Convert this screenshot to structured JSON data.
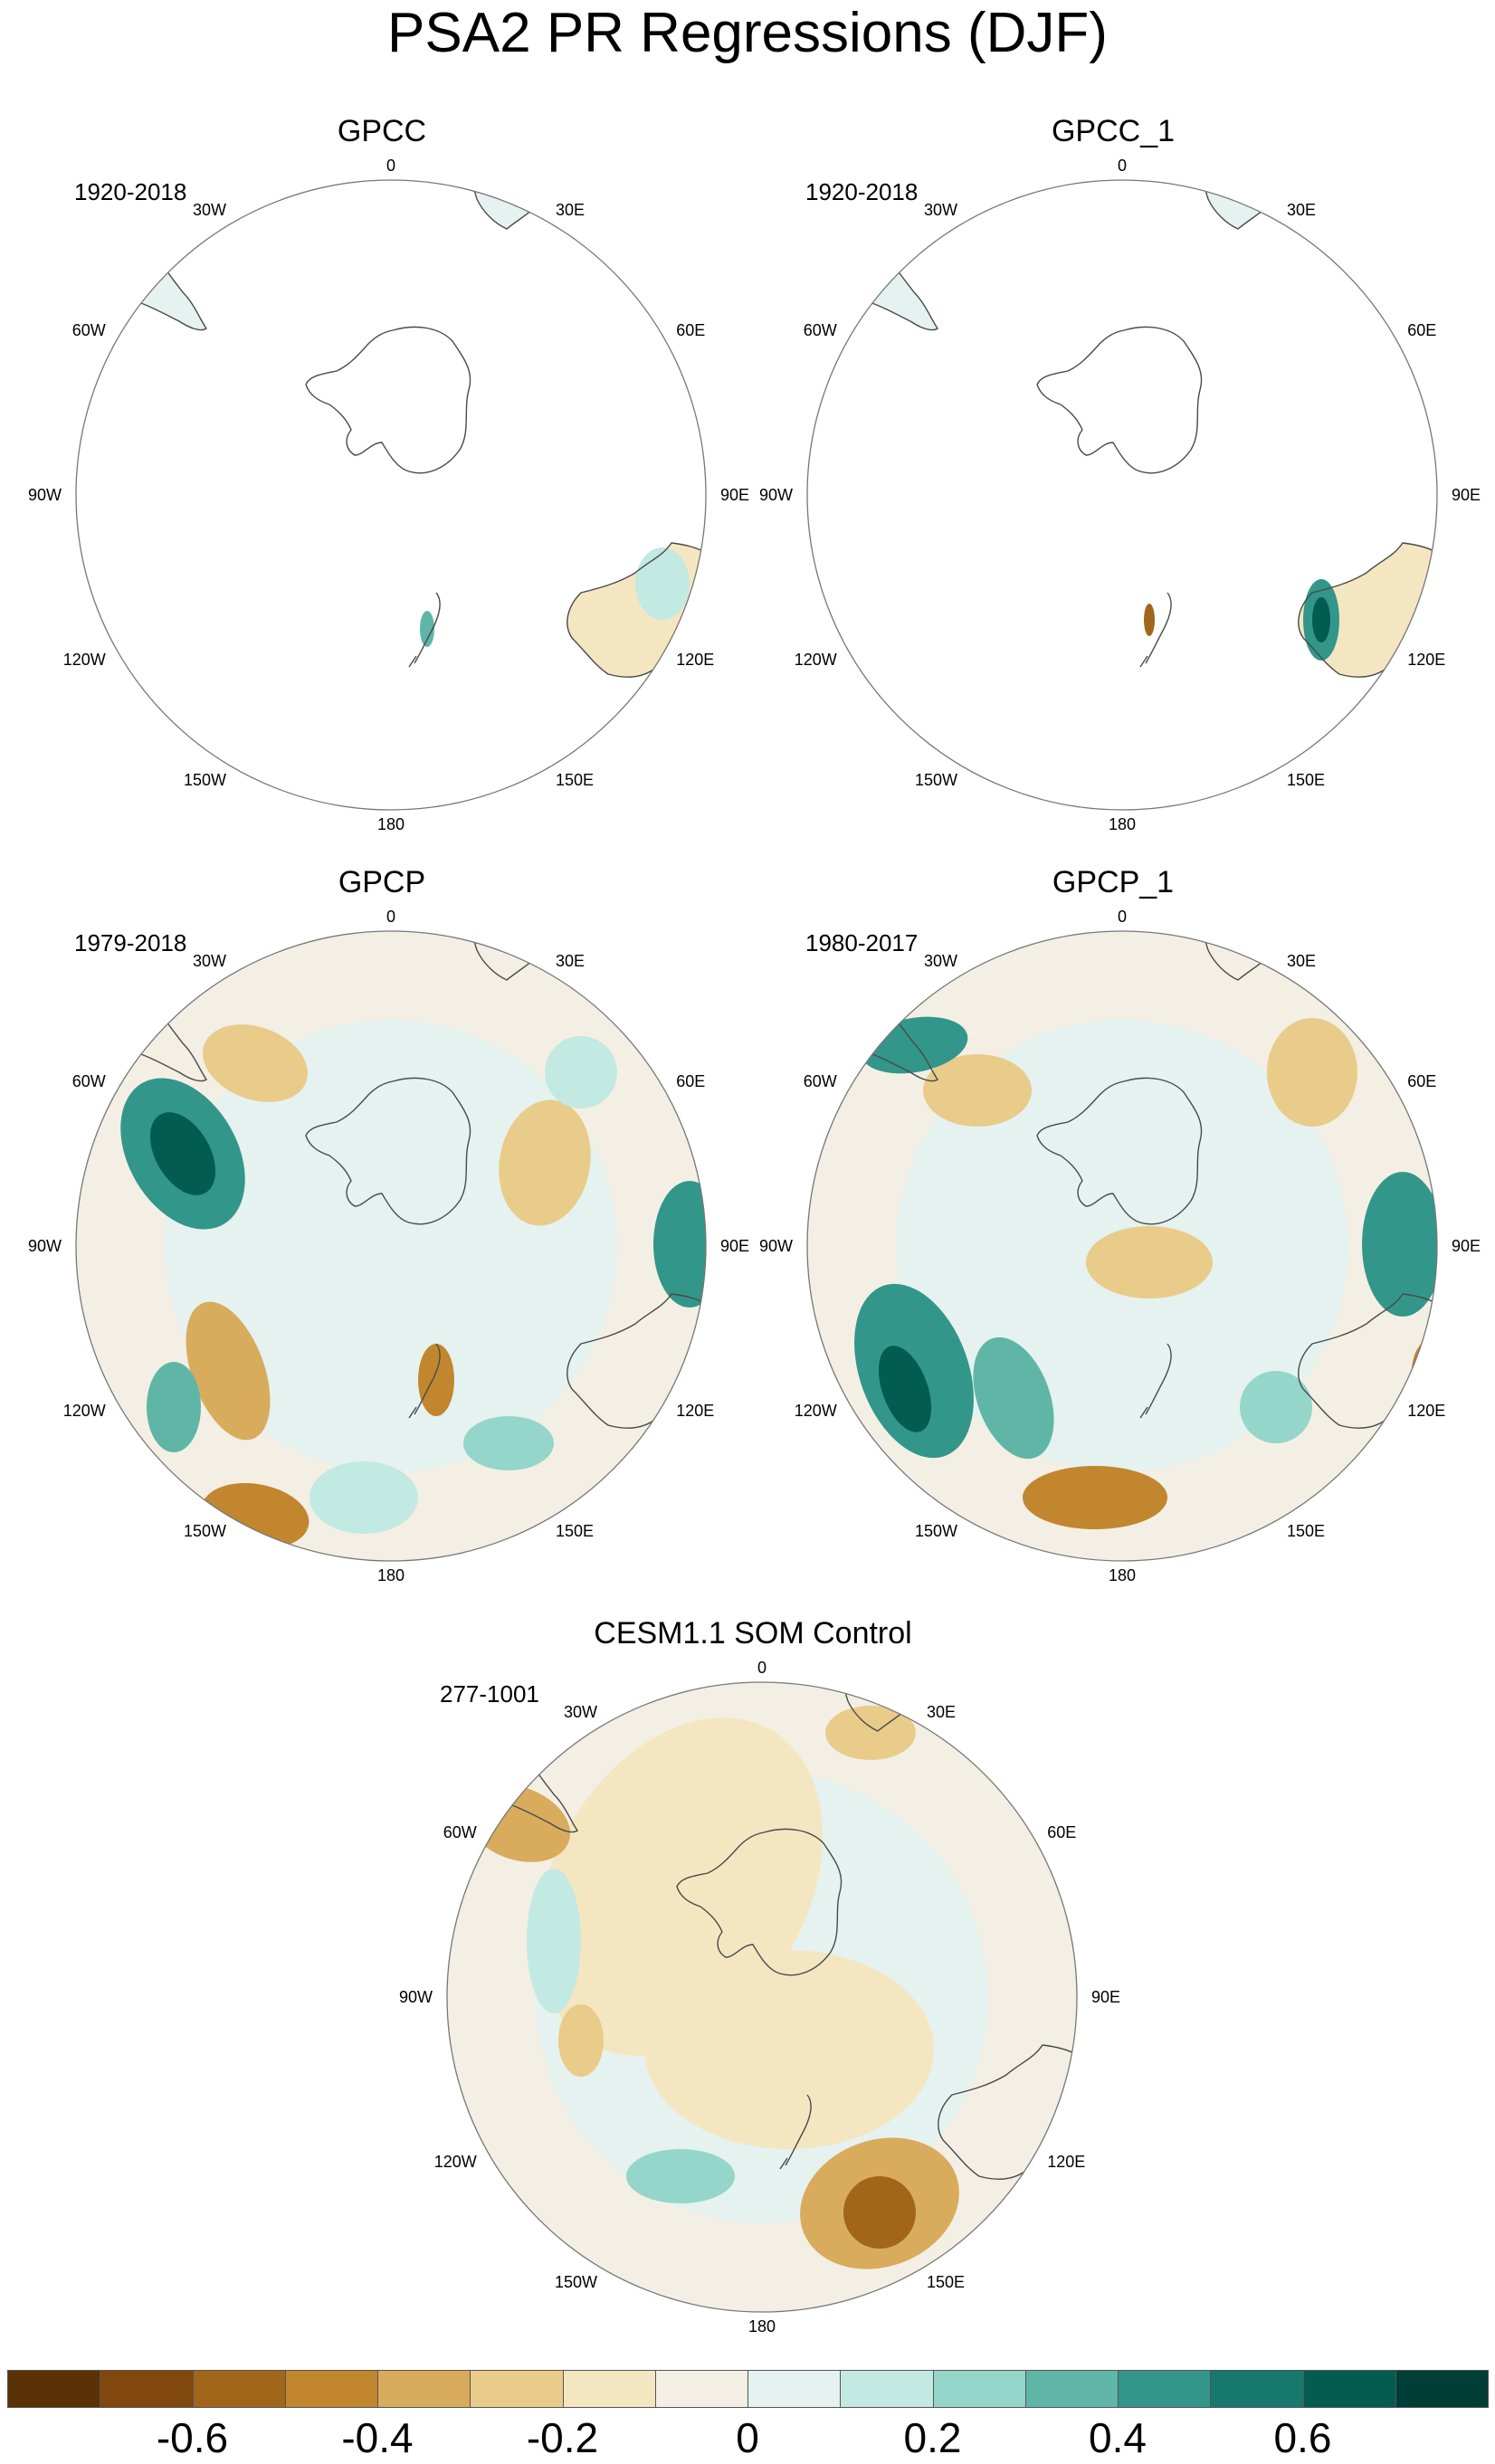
{
  "title": "PSA2 PR Regressions (DJF)",
  "colors": {
    "land_outline": "#4a4a4a",
    "circle_outline": "#777777",
    "scale": [
      "#5a3205",
      "#81480e",
      "#a2661b",
      "#c2862f",
      "#d8ac5c",
      "#e9cc8a",
      "#f5e6c2",
      "#f4efe5",
      "#e5f2f0",
      "#c2e9e2",
      "#94d6c9",
      "#5fb6a7",
      "#33968a",
      "#17786e",
      "#035c52",
      "#003e36"
    ]
  },
  "longitude_labels": [
    "0",
    "30E",
    "60E",
    "90E",
    "120E",
    "150E",
    "180",
    "150W",
    "120W",
    "90W",
    "60W",
    "30W"
  ],
  "panels": [
    {
      "title": "GPCC",
      "period": "1920-2018",
      "coverage": "land"
    },
    {
      "title": "GPCC_1",
      "period": "1920-2018",
      "coverage": "land"
    },
    {
      "title": "GPCP",
      "period": "1979-2018",
      "coverage": "full"
    },
    {
      "title": "GPCP_1",
      "period": "1980-2017",
      "coverage": "full"
    },
    {
      "title": "CESM1.1 SOM Control",
      "period": "277-1001",
      "coverage": "full"
    }
  ],
  "colorbar": {
    "tick_labels": [
      "-0.6",
      "-0.4",
      "-0.2",
      "0",
      "0.2",
      "0.4",
      "0.6"
    ],
    "tick_values": [
      -0.6,
      -0.4,
      -0.2,
      0,
      0.2,
      0.4,
      0.6
    ],
    "levels": [
      -0.7,
      -0.6,
      -0.5,
      -0.4,
      -0.3,
      -0.2,
      -0.1,
      0,
      0.1,
      0.2,
      0.3,
      0.4,
      0.5,
      0.6,
      0.7
    ]
  }
}
